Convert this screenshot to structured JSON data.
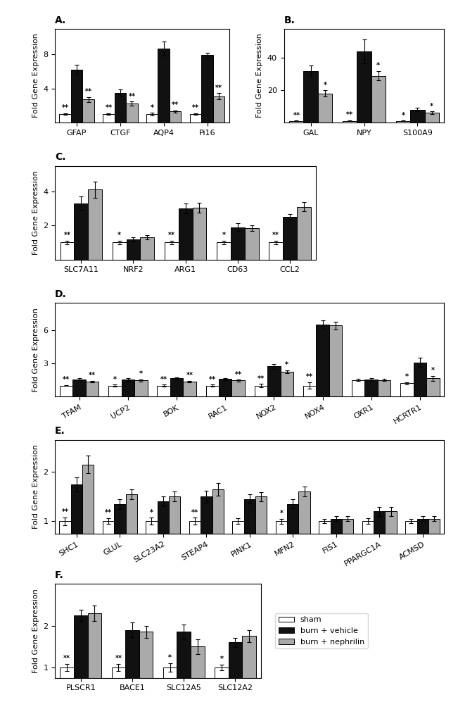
{
  "chart_data": [
    {
      "type": "bar",
      "title": "A.",
      "y_label": "Fold Gene Expression",
      "categories": [
        "GFAP",
        "CTGF",
        "AQP4",
        "Pi16"
      ],
      "series": [
        {
          "name": "sham",
          "color": "#ffffff",
          "values": [
            1.0,
            1.0,
            1.0,
            1.0
          ],
          "errors": [
            0.1,
            0.1,
            0.15,
            0.1
          ],
          "significance": [
            "**",
            "**",
            "*",
            "**"
          ]
        },
        {
          "name": "burn + vehicle",
          "color": "#111111",
          "values": [
            6.2,
            3.5,
            8.7,
            7.9
          ],
          "errors": [
            0.55,
            0.35,
            0.85,
            0.25
          ]
        },
        {
          "name": "burn + nephrilin",
          "color": "#aaaaaa",
          "values": [
            2.7,
            2.2,
            1.3,
            3.1
          ],
          "errors": [
            0.3,
            0.25,
            0.15,
            0.35
          ],
          "significance": [
            "**",
            "**",
            "**",
            "**"
          ]
        }
      ],
      "ylim": [
        0,
        11
      ],
      "yticks": [
        4,
        8
      ]
    },
    {
      "type": "bar",
      "title": "B.",
      "y_label": "Fold Gene Expression",
      "categories": [
        "GAL",
        "NPY",
        "S100A9"
      ],
      "series": [
        {
          "name": "sham",
          "color": "#ffffff",
          "values": [
            1.0,
            1.0,
            1.0
          ],
          "errors": [
            0.2,
            0.3,
            0.2
          ],
          "significance": [
            "**",
            "**",
            "*"
          ]
        },
        {
          "name": "burn + vehicle",
          "color": "#111111",
          "values": [
            32.0,
            44.0,
            8.0
          ],
          "errors": [
            3.5,
            7.5,
            1.2
          ]
        },
        {
          "name": "burn + nephrilin",
          "color": "#aaaaaa",
          "values": [
            18.0,
            29.0,
            6.0
          ],
          "errors": [
            2.0,
            3.0,
            0.8
          ],
          "significance": [
            "*",
            "*",
            "*"
          ]
        }
      ],
      "ylim": [
        0,
        58
      ],
      "yticks": [
        20,
        40
      ]
    },
    {
      "type": "bar",
      "title": "C.",
      "y_label": "Fold Gene Expression",
      "categories": [
        "SLC7A11",
        "NRF2",
        "ARG1",
        "CD63",
        "CCL2"
      ],
      "series": [
        {
          "name": "sham",
          "color": "#ffffff",
          "values": [
            1.0,
            1.0,
            1.0,
            1.0,
            1.0
          ],
          "errors": [
            0.1,
            0.1,
            0.1,
            0.1,
            0.1
          ],
          "significance": [
            "**",
            "*",
            "**",
            "*",
            "**"
          ]
        },
        {
          "name": "burn + vehicle",
          "color": "#111111",
          "values": [
            3.3,
            1.2,
            3.0,
            1.9,
            2.5
          ],
          "errors": [
            0.4,
            0.12,
            0.28,
            0.22,
            0.18
          ]
        },
        {
          "name": "burn + nephrilin",
          "color": "#aaaaaa",
          "values": [
            4.1,
            1.3,
            3.05,
            1.85,
            3.1
          ],
          "errors": [
            0.48,
            0.12,
            0.28,
            0.18,
            0.28
          ]
        }
      ],
      "ylim": [
        0,
        5.5
      ],
      "yticks": [
        2,
        4
      ]
    },
    {
      "type": "bar",
      "title": "D.",
      "y_label": "Fold Gene Expression",
      "categories": [
        "TFAM",
        "UCP2",
        "BOK",
        "RAC1",
        "NOX2",
        "NOX4",
        "OXR1",
        "HCRTR1"
      ],
      "series": [
        {
          "name": "sham",
          "color": "#ffffff",
          "values": [
            1.0,
            1.0,
            1.0,
            1.0,
            1.0,
            1.0,
            1.5,
            1.2
          ],
          "errors": [
            0.06,
            0.08,
            0.07,
            0.07,
            0.15,
            0.28,
            0.08,
            0.12
          ],
          "significance": [
            "**",
            "*",
            "**",
            "**",
            "**",
            "**",
            null,
            "*"
          ]
        },
        {
          "name": "burn + vehicle",
          "color": "#111111",
          "values": [
            1.55,
            1.55,
            1.65,
            1.6,
            2.75,
            6.55,
            1.55,
            3.1
          ],
          "errors": [
            0.1,
            0.12,
            0.1,
            0.1,
            0.22,
            0.38,
            0.12,
            0.42
          ]
        },
        {
          "name": "burn + nephrilin",
          "color": "#aaaaaa",
          "values": [
            1.35,
            1.45,
            1.35,
            1.45,
            2.25,
            6.45,
            1.5,
            1.65
          ],
          "errors": [
            0.08,
            0.1,
            0.08,
            0.08,
            0.14,
            0.36,
            0.1,
            0.22
          ],
          "significance": [
            "**",
            "*",
            "**",
            "**",
            "*",
            null,
            null,
            "*"
          ]
        }
      ],
      "ylim": [
        0,
        8.5
      ],
      "yticks": [
        3,
        6
      ]
    },
    {
      "type": "bar",
      "title": "E.",
      "y_label": "Fold Gene Expression",
      "categories": [
        "SHC1",
        "GLUL",
        "SLC23A2",
        "STEAP4",
        "PINK1",
        "MFN2",
        "FIS1",
        "PPARGC1A",
        "ACMSD"
      ],
      "series": [
        {
          "name": "sham",
          "color": "#ffffff",
          "values": [
            1.0,
            1.0,
            1.0,
            1.0,
            1.0,
            1.0,
            1.0,
            1.0,
            1.0
          ],
          "errors": [
            0.08,
            0.06,
            0.07,
            0.07,
            0.06,
            0.05,
            0.04,
            0.06,
            0.04
          ],
          "significance": [
            "**",
            "**",
            "*",
            "**",
            null,
            "*",
            null,
            null,
            null
          ]
        },
        {
          "name": "burn + vehicle",
          "color": "#111111",
          "values": [
            1.75,
            1.35,
            1.4,
            1.5,
            1.45,
            1.35,
            1.05,
            1.2,
            1.05
          ],
          "errors": [
            0.14,
            0.1,
            0.1,
            0.12,
            0.09,
            0.09,
            0.05,
            0.09,
            0.05
          ]
        },
        {
          "name": "burn + nephrilin",
          "color": "#aaaaaa",
          "values": [
            2.15,
            1.55,
            1.5,
            1.65,
            1.5,
            1.6,
            1.05,
            1.2,
            1.05
          ],
          "errors": [
            0.18,
            0.1,
            0.1,
            0.13,
            0.09,
            0.1,
            0.05,
            0.09,
            0.05
          ]
        }
      ],
      "ylim": [
        0.75,
        2.65
      ],
      "yticks": [
        1,
        2
      ]
    },
    {
      "type": "bar",
      "title": "F.",
      "y_label": "Fold Gene Expression",
      "categories": [
        "PLSCR1",
        "BACE1",
        "SLC12A5",
        "SLC12A2"
      ],
      "series": [
        {
          "name": "sham",
          "color": "#ffffff",
          "values": [
            1.0,
            1.0,
            1.0,
            1.0
          ],
          "errors": [
            0.08,
            0.08,
            0.1,
            0.07
          ],
          "significance": [
            "**",
            "**",
            "*",
            "*"
          ]
        },
        {
          "name": "burn + vehicle",
          "color": "#111111",
          "values": [
            2.25,
            1.9,
            1.85,
            1.6
          ],
          "errors": [
            0.14,
            0.18,
            0.18,
            0.11
          ]
        },
        {
          "name": "burn + nephrilin",
          "color": "#aaaaaa",
          "values": [
            2.3,
            1.85,
            1.5,
            1.75
          ],
          "errors": [
            0.18,
            0.14,
            0.18,
            0.14
          ]
        }
      ],
      "ylim": [
        0.75,
        3.0
      ],
      "yticks": [
        1,
        2
      ],
      "legend": "center left"
    }
  ]
}
